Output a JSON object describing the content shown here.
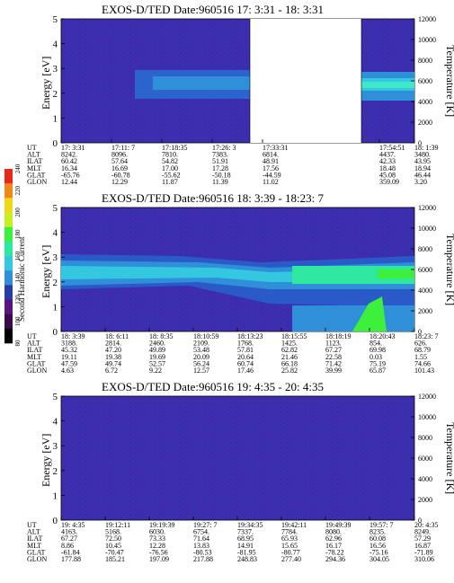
{
  "colorbar": {
    "label": "Second Harmonic Current",
    "ticks": [
      "80",
      "100",
      "120",
      "140",
      "160",
      "180",
      "200",
      "220",
      "240"
    ],
    "colors": [
      "#000000",
      "#3a0a4a",
      "#5a1480",
      "#2a3aa8",
      "#2f8fd8",
      "#33c8e0",
      "#2ee8a0",
      "#3cf03c",
      "#c8f020",
      "#f0d818",
      "#f08818",
      "#e82818"
    ]
  },
  "eph_labels": [
    "UT",
    "ALT",
    "ILAT",
    "MLT",
    "GLAT",
    "GLON"
  ],
  "panels": [
    {
      "title": "EXOS-D/TED   Date:960516  17: 3:31 - 18: 3:31",
      "ylabel": "Energy [eV]",
      "y2label": "Temperature [K]",
      "ylim": [
        0,
        5
      ],
      "y2lim": [
        0,
        12000
      ],
      "yticks": [
        "0",
        "1",
        "2",
        "3",
        "4",
        "5"
      ],
      "y2ticks": [
        "0",
        "2000",
        "4000",
        "6000",
        "8000",
        "10000",
        "12000"
      ],
      "time_range": [
        "17:03:31",
        "18:03:31"
      ],
      "data_gap": [
        "17:33:31",
        "17:54:51"
      ],
      "columns": [
        [
          "17: 3:31",
          "8242.",
          "60.42",
          "16.34",
          "-65.76",
          "12.44"
        ],
        [
          "17:11: 7",
          "8096.",
          "57.64",
          "16.69",
          "-60.78",
          "12.29"
        ],
        [
          "17:18:35",
          "7810.",
          "54.82",
          "17.00",
          "-55.62",
          "11.87"
        ],
        [
          "17:26: 3",
          "7383.",
          "51.91",
          "17.28",
          "-50.18",
          "11.39"
        ],
        [
          "17:33:31",
          "6814.",
          "48.91",
          "17.56",
          "-44.59",
          "11.02"
        ],
        [
          "17:54:51",
          "4437.",
          "42.33",
          "18.48",
          "45.08",
          "359.09"
        ],
        [
          "18: 1:39",
          "3480.",
          "43.95",
          "18.94",
          "46.44",
          "3.20"
        ]
      ]
    },
    {
      "title": "EXOS-D/TED   Date:960516  18: 3:39 - 18:23: 7",
      "ylabel": "Energy [eV]",
      "y2label": "Temperature [K]",
      "ylim": [
        0,
        5
      ],
      "y2lim": [
        0,
        12000
      ],
      "yticks": [
        "0",
        "1",
        "2",
        "3",
        "4",
        "5"
      ],
      "y2ticks": [
        "0",
        "2000",
        "4000",
        "6000",
        "8000",
        "10000",
        "12000"
      ],
      "time_range": [
        "18:03:39",
        "18:23:07"
      ],
      "columns": [
        [
          "18: 3:39",
          "3188.",
          "45.32",
          "19.11",
          "47.59",
          "4.63"
        ],
        [
          "18: 6:11",
          "2814.",
          "47.20",
          "19.38",
          "49.74",
          "6.72"
        ],
        [
          "18: 8:35",
          "2460.",
          "49.89",
          "19.69",
          "52.57",
          "9.22"
        ],
        [
          "18:10:59",
          "2109.",
          "53.48",
          "20.09",
          "56.24",
          "12.57"
        ],
        [
          "18:13:23",
          "1768.",
          "57.81",
          "20.64",
          "60.74",
          "17.46"
        ],
        [
          "18:15:55",
          "1425.",
          "62.82",
          "21.46",
          "66.18",
          "25.82"
        ],
        [
          "18:18:19",
          "1123.",
          "67.27",
          "22.58",
          "71.42",
          "39.99"
        ],
        [
          "18:20:43",
          "854.",
          "69.98",
          "0.03",
          "75.19",
          "65.87"
        ],
        [
          "18:23: 7",
          "626.",
          "68.79",
          "1.55",
          "74.66",
          "101.43"
        ]
      ]
    },
    {
      "title": "EXOS-D/TED   Date:960516  19: 4:35 - 20: 4:35",
      "ylabel": "Energy [eV]",
      "y2label": "Temperature [K]",
      "ylim": [
        0,
        5
      ],
      "y2lim": [
        0,
        12000
      ],
      "yticks": [
        "0",
        "1",
        "2",
        "3",
        "4",
        "5"
      ],
      "y2ticks": [
        "0",
        "2000",
        "4000",
        "6000",
        "8000",
        "10000",
        "12000"
      ],
      "time_range": [
        "19:04:35",
        "20:04:35"
      ],
      "columns": [
        [
          "19: 4:35",
          "4163.",
          "67.27",
          "8.86",
          "-61.84",
          "177.88"
        ],
        [
          "19:12:11",
          "5168.",
          "72.50",
          "10.45",
          "-70.47",
          "185.21"
        ],
        [
          "19:19:39",
          "6030.",
          "73.33",
          "12.28",
          "-76.56",
          "197.09"
        ],
        [
          "19:27: 7",
          "6754.",
          "71.64",
          "13.83",
          "-80.53",
          "217.88"
        ],
        [
          "19:34:35",
          "7337.",
          "68.95",
          "14.91",
          "-81.95",
          "248.83"
        ],
        [
          "19:42:11",
          "7784.",
          "65.93",
          "15.65",
          "-80.77",
          "277.40"
        ],
        [
          "19:49:39",
          "8080.",
          "62.96",
          "16.17",
          "-78.22",
          "294.36"
        ],
        [
          "19:57: 7",
          "8235.",
          "60.08",
          "16.56",
          "-75.16",
          "304.05"
        ],
        [
          "20: 4:35",
          "8249.",
          "57.29",
          "16.87",
          "-71.89",
          "310.06"
        ]
      ]
    }
  ],
  "chart_data": [
    {
      "type": "heatmap",
      "title": "EXOS-D/TED   Date:960516  17: 3:31 - 18: 3:31",
      "ylabel": "Energy [eV]",
      "y2label": "Temperature [K]",
      "ylim": [
        0,
        5
      ],
      "y2lim": [
        0,
        12000
      ],
      "colorbar_label": "Second Harmonic Current",
      "colorbar_range": [
        80,
        240
      ],
      "bands": [
        {
          "x": [
            "17:20",
            "17:33"
          ],
          "y": [
            1.9,
            2.9
          ],
          "level": 140
        },
        {
          "x": [
            "17:54",
            "18:03"
          ],
          "y": [
            2.0,
            2.8
          ],
          "level": 160
        }
      ],
      "gap": [
        "17:33:31",
        "17:54:51"
      ]
    },
    {
      "type": "heatmap",
      "title": "EXOS-D/TED   Date:960516  18: 3:39 - 18:23: 7",
      "ylabel": "Energy [eV]",
      "y2label": "Temperature [K]",
      "ylim": [
        0,
        5
      ],
      "y2lim": [
        0,
        12000
      ],
      "colorbar_label": "Second Harmonic Current",
      "colorbar_range": [
        80,
        240
      ],
      "bands": [
        {
          "x": [
            "18:03",
            "18:23"
          ],
          "y": [
            1.8,
            2.8
          ],
          "level": 150
        },
        {
          "x": [
            "18:16",
            "18:23"
          ],
          "y": [
            1.8,
            2.7
          ],
          "level": 180
        },
        {
          "x": [
            "18:19",
            "18:23"
          ],
          "y": [
            0,
            0.9
          ],
          "level": 200
        }
      ]
    },
    {
      "type": "heatmap",
      "title": "EXOS-D/TED   Date:960516  19: 4:35 - 20: 4:35",
      "ylabel": "Energy [eV]",
      "y2label": "Temperature [K]",
      "ylim": [
        0,
        5
      ],
      "y2lim": [
        0,
        12000
      ],
      "colorbar_label": "Second Harmonic Current",
      "colorbar_range": [
        80,
        240
      ],
      "bands": []
    }
  ]
}
